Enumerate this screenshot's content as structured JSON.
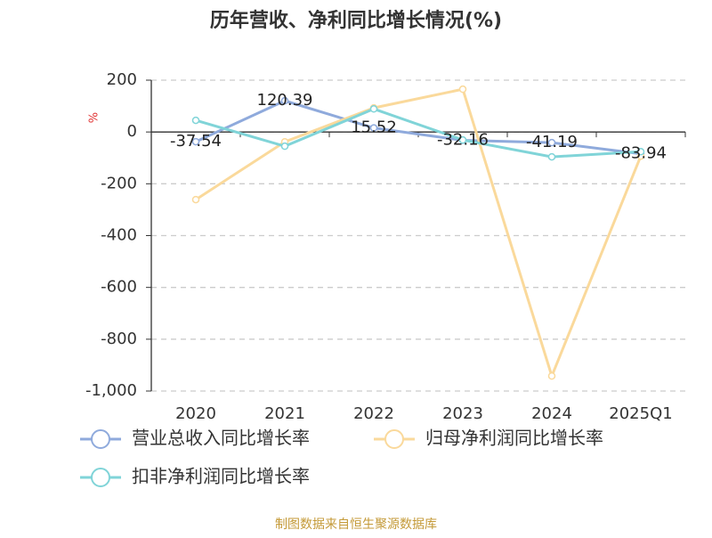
{
  "chart_data": {
    "type": "line",
    "title": "历年营收、净利同比增长情况(%)",
    "y_label": "%",
    "categories": [
      "2020",
      "2021",
      "2022",
      "2023",
      "2024",
      "2025Q1"
    ],
    "series": [
      {
        "name": "营业总收入同比增长率",
        "color": "#8faadc",
        "values": [
          -37.54,
          120.39,
          15.52,
          -32.16,
          -41.19,
          -83.94
        ],
        "show_labels": true
      },
      {
        "name": "归母净利润同比增长率",
        "color": "#fad99b",
        "values": [
          -261,
          -38,
          93,
          165,
          -942,
          -93
        ],
        "show_labels": false
      },
      {
        "name": "扣非净利润同比增长率",
        "color": "#80d4d8",
        "values": [
          45,
          -55,
          89,
          -31,
          -96,
          -76
        ],
        "show_labels": false
      }
    ],
    "ylim": [
      -1000,
      200
    ],
    "yticks": [
      200,
      0,
      -200,
      -400,
      -600,
      -800,
      {
        "value": -1000,
        "label": "-1,000"
      }
    ],
    "grid": true,
    "source": "制图数据来自恒生聚源数据库"
  }
}
